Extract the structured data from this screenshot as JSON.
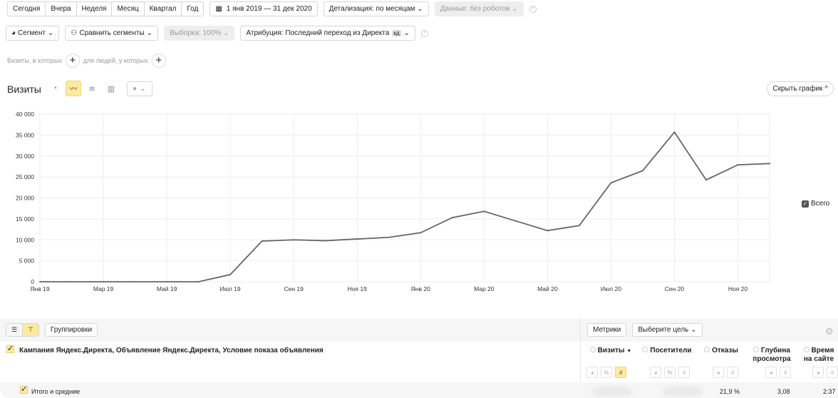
{
  "toolbar": {
    "periods": [
      "Сегодня",
      "Вчера",
      "Неделя",
      "Месяц",
      "Квартал",
      "Год"
    ],
    "date_range": "1 янв 2019 — 31 дек 2020",
    "detail": "Детализация: по месяцам",
    "data_filter": "Данные: без роботов",
    "segment": "Сегмент",
    "compare": "Сравнить сегменты",
    "sample": "Выборка: 100%",
    "attribution": "Атрибуция: Последний переход из Директа",
    "attribution_badge": "кд",
    "visits_where": "Визиты, в которых",
    "people_where": "для людей, у которых"
  },
  "chart_header": {
    "title": "Визиты",
    "hide_chart": "Скрыть график"
  },
  "chart_data": {
    "type": "line",
    "x": [
      "Янв 19",
      "Фев 19",
      "Мар 19",
      "Апр 19",
      "Май 19",
      "Июн 19",
      "Июл 19",
      "Авг 19",
      "Сен 19",
      "Окт 19",
      "Ноя 19",
      "Дек 19",
      "Янв 20",
      "Фев 20",
      "Мар 20",
      "Апр 20",
      "Май 20",
      "Июн 20",
      "Июл 20",
      "Авг 20",
      "Сен 20",
      "Окт 20",
      "Ноя 20",
      "Дек 20"
    ],
    "x_tick_labels": [
      "Янв 19",
      "Мар 19",
      "Май 19",
      "Июл 19",
      "Сен 19",
      "Ноя 19",
      "Янв 20",
      "Мар 20",
      "Май 20",
      "Июл 20",
      "Сен 20",
      "Ноя 20"
    ],
    "series": [
      {
        "name": "Всего",
        "values": [
          0,
          0,
          0,
          0,
          0,
          0,
          1700,
          9700,
          10000,
          9800,
          10200,
          10600,
          11700,
          15300,
          16800,
          14500,
          12200,
          13400,
          23600,
          26500,
          35700,
          24300,
          27900,
          28200
        ]
      }
    ],
    "y_ticks": [
      "0",
      "5 000",
      "10 000",
      "15 000",
      "20 000",
      "25 000",
      "30 000",
      "35 000",
      "40 000"
    ],
    "ylim": [
      0,
      40000
    ],
    "grid": true,
    "legend": "right",
    "line_color": "#666666"
  },
  "table": {
    "groupings": "Группировки",
    "metrics": "Метрики",
    "goal": "Выберите цель",
    "dimension_header": "Кампания Яндекс.Директа, Объявление Яндекс.Директа, Условие показа объявления",
    "columns": [
      {
        "label": "Визиты",
        "sort": "▼"
      },
      {
        "label": "Посетители"
      },
      {
        "label": "Отказы"
      },
      {
        "label": "Глубина просмотра"
      },
      {
        "label": "Время на сайте"
      }
    ],
    "totals_label": "Итого и средние",
    "totals": {
      "bounce": "21,9 %",
      "depth": "3,08",
      "time": "2:37"
    }
  }
}
